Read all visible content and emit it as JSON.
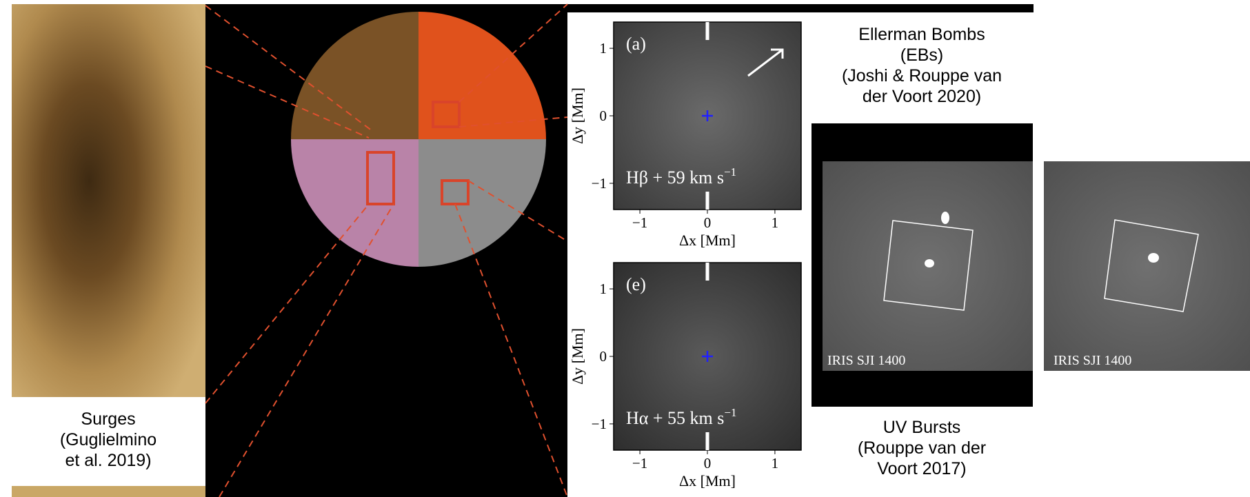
{
  "captions": {
    "ebs": [
      "Ellerman Bombs",
      "(EBs)",
      "(Joshi & Rouppe van",
      "der Voort 2020)"
    ],
    "surges": [
      "Surges",
      "(Guglielmino",
      "et al. 2019)"
    ],
    "uv_bursts": [
      "UV Bursts",
      "(Rouppe van der",
      "Voort 2017)"
    ]
  },
  "panels": [
    {
      "letter": "(a)",
      "line": "Hβ + 59 km s",
      "line_exp": "−1",
      "x_label": "Δx [Mm]",
      "y_label": "Δy [Mm]",
      "xticks": [
        "−1",
        "0",
        "1"
      ],
      "yticks": [
        "−1",
        "0",
        "1"
      ]
    },
    {
      "letter": "(e)",
      "line": "Hα + 55 km s",
      "line_exp": "−1",
      "x_label": "Δx [Mm]",
      "y_label": "Δy [Mm]",
      "xticks": [
        "−1",
        "0",
        "1"
      ],
      "yticks": [
        "−1",
        "0",
        "1"
      ]
    }
  ],
  "iris_labels": [
    "IRIS SJI 1400",
    "IRIS SJI 1400"
  ]
}
